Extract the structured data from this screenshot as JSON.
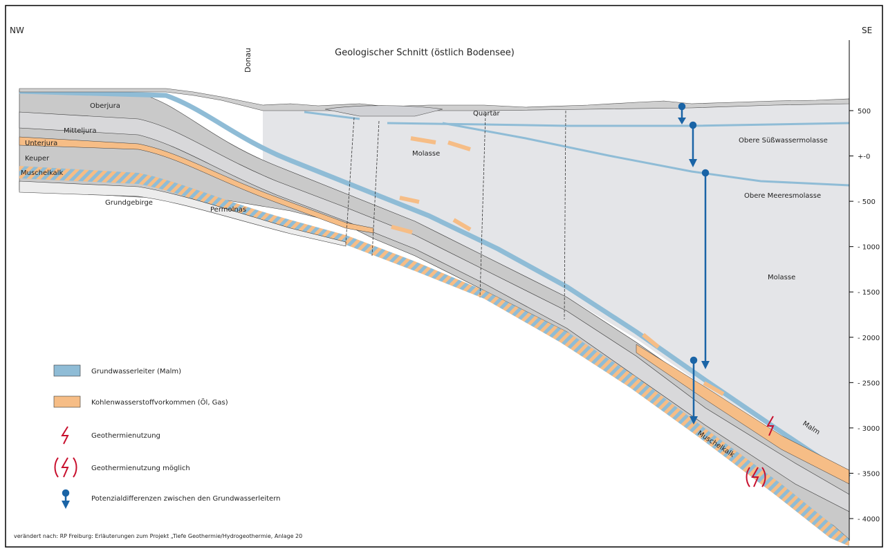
{
  "title": "Geologischer Schnitt (östlich Bodensee)",
  "orientation": {
    "left": "NW",
    "right": "SE"
  },
  "place_label": "Donau",
  "layer_labels": {
    "oberjura": "Oberjura",
    "mitteljura": "Mitteljura",
    "unterjura": "Unterjura",
    "keuper": "Keuper",
    "muschelkalk": "Muschelkalk",
    "grundgebirge": "Grundgebirge",
    "permolnas": "Permolnas",
    "quartaer": "Quartär",
    "molasse_upper": "Molasse",
    "molasse_right": "Molasse",
    "osm": "Obere Süßwassermolasse",
    "omm": "Obere Meeresmolasse",
    "malm": "Malm",
    "muschelkalk_diag": "Muschelkalk"
  },
  "depth_scale": {
    "unit": "m",
    "ticks": [
      "500",
      "+-0",
      "- 500",
      "- 1000",
      "- 1500",
      "- 2000",
      "- 2500",
      "- 3000",
      "- 3500",
      "- 4000"
    ]
  },
  "legend": [
    {
      "key": "aquifer",
      "label": "Grundwasserleiter (Malm)",
      "color": "#8fbcd6"
    },
    {
      "key": "hydrocarbon",
      "label": "Kohlenwasserstoffvorkommen (Öl, Gas)",
      "color": "#f6bd86"
    },
    {
      "key": "geothermal",
      "label": "Geothermienutzung",
      "icon": "lightning-icon",
      "color": "#c8102e"
    },
    {
      "key": "geothermal_possible",
      "label": "Geothermienutzung möglich",
      "icon": "lightning-bracketed-icon",
      "color": "#c8102e"
    },
    {
      "key": "potential",
      "label": "Potenzialdifferenzen zwischen den Grundwasserleitern",
      "icon": "arrow-down-icon",
      "color": "#1a64a6"
    }
  ],
  "source": "verändert nach: RP Freiburg: Erläuterungen zum Projekt „Tiefe Geothermie/Hydrogeothermie, Anlage 20",
  "colors": {
    "frame": "#000000",
    "layer_gray": "#c9c9c9",
    "layer_light": "#e2e2e5",
    "molasse": "#e4e5e8",
    "aquifer": "#8fbcd6",
    "hydrocarbon": "#f6bd86",
    "arrow": "#1a64a6",
    "geothermal": "#c8102e"
  }
}
